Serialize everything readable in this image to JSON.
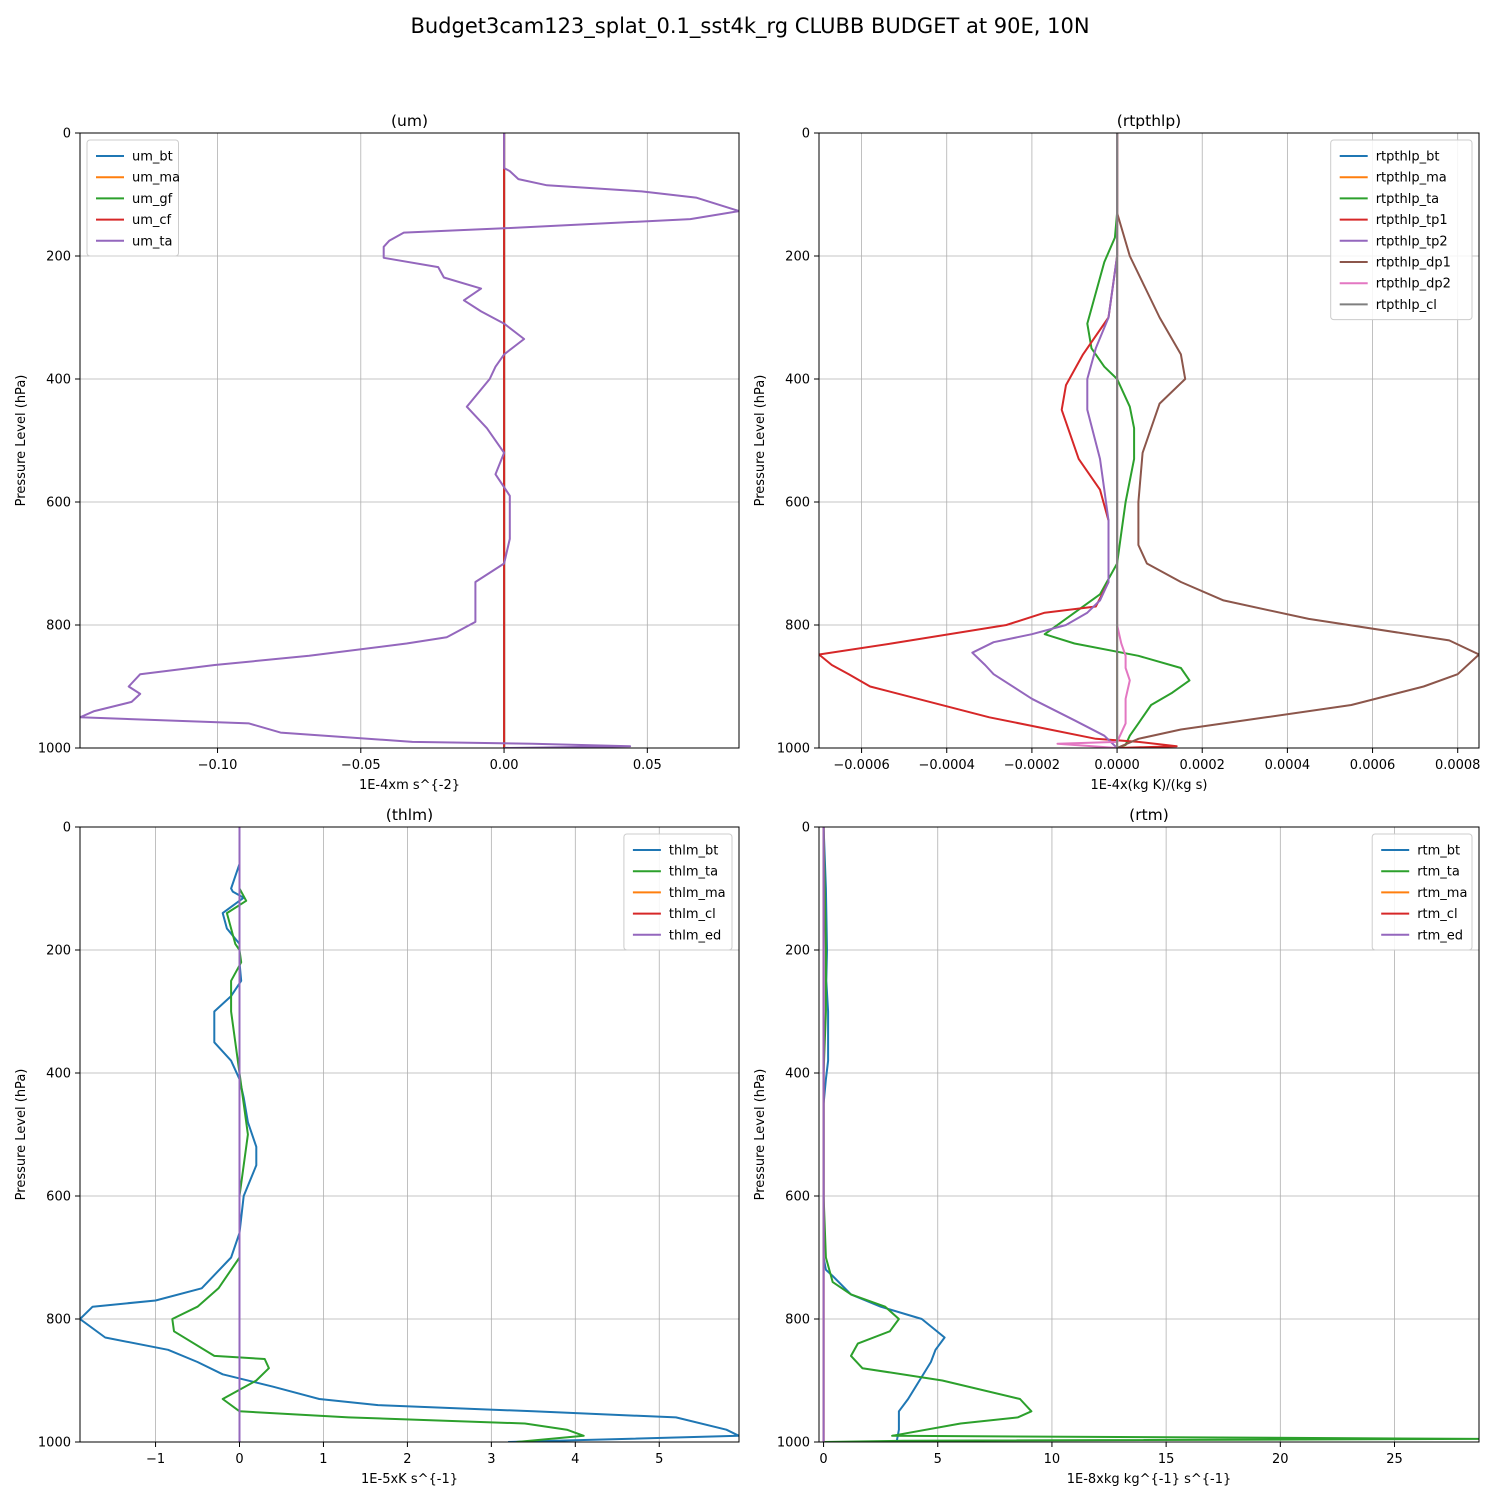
{
  "figure": {
    "suptitle": "Budget3cam123_splat_0.1_sst4k_rg CLUBB BUDGET at 90E, 10N"
  },
  "colors": {
    "c0": "#1f77b4",
    "c1": "#ff7f0e",
    "c2": "#2ca02c",
    "c3": "#d62728",
    "c4": "#9467bd",
    "c5": "#8c564b",
    "c6": "#e377c2",
    "c7": "#7f7f7f"
  },
  "chart_data": [
    {
      "type": "line",
      "title": "(um)",
      "xlabel": "1E-4xm s^{-2}",
      "ylabel": "Pressure Level (hPa)",
      "xlim": [
        -0.148,
        0.082
      ],
      "ylim": [
        1000,
        0
      ],
      "xticks": [
        -0.1,
        -0.05,
        0.0,
        0.05
      ],
      "xtick_labels": [
        "−0.10",
        "−0.05",
        "0.00",
        "0.05"
      ],
      "yticks": [
        0,
        200,
        400,
        600,
        800,
        1000
      ],
      "grid": true,
      "legend": "upper left",
      "series": [
        {
          "name": "um_bt",
          "color": "#1f77b4",
          "x": [
            0,
            0
          ],
          "y": [
            0,
            1000
          ]
        },
        {
          "name": "um_ma",
          "color": "#ff7f0e",
          "x": [
            0,
            0
          ],
          "y": [
            0,
            1000
          ]
        },
        {
          "name": "um_gf",
          "color": "#2ca02c",
          "x": [
            0,
            0
          ],
          "y": [
            0,
            1000
          ]
        },
        {
          "name": "um_cf",
          "color": "#d62728",
          "x": [
            0,
            0
          ],
          "y": [
            0,
            1000
          ]
        },
        {
          "name": "um_ta",
          "color": "#9467bd",
          "x": [
            0,
            0,
            0.002,
            0.005,
            0.015,
            0.048,
            0.067,
            0.082,
            0.065,
            0,
            -0.035,
            -0.04,
            -0.042,
            -0.042,
            -0.023,
            -0.021,
            -0.008,
            -0.014,
            -0.008,
            0,
            0.007,
            0,
            -0.003,
            -0.005,
            -0.013,
            -0.006,
            0,
            -0.003,
            0.002,
            0.002,
            0.002,
            0,
            -0.01,
            -0.01,
            -0.01,
            -0.01,
            -0.02,
            -0.034,
            -0.068,
            -0.101,
            -0.127,
            -0.131,
            -0.127,
            -0.13,
            -0.143,
            -0.148,
            -0.089,
            -0.078,
            -0.032,
            0.01,
            0.044,
            0
          ],
          "y": [
            0,
            57,
            62,
            75,
            85,
            95,
            105,
            127,
            140,
            155,
            162,
            175,
            185,
            203,
            218,
            235,
            253,
            272,
            290,
            310,
            335,
            360,
            380,
            400,
            445,
            480,
            520,
            555,
            590,
            620,
            660,
            700,
            730,
            760,
            780,
            795,
            820,
            830,
            850,
            865,
            880,
            900,
            912,
            925,
            940,
            950,
            960,
            975,
            990,
            993,
            997,
            1000
          ]
        }
      ]
    },
    {
      "type": "line",
      "title": "(rtpthlp)",
      "xlabel": "1E-4x(kg K)/(kg s)",
      "ylabel": "Pressure Level (hPa)",
      "xlim": [
        -0.0007,
        0.00085
      ],
      "ylim": [
        1000,
        0
      ],
      "xticks": [
        -0.0006,
        -0.0004,
        -0.0002,
        0.0,
        0.0002,
        0.0004,
        0.0006,
        0.0008
      ],
      "xtick_labels": [
        "−0.0006",
        "−0.0004",
        "−0.0002",
        "0.0000",
        "0.0002",
        "0.0004",
        "0.0006",
        "0.0008"
      ],
      "yticks": [
        0,
        200,
        400,
        600,
        800,
        1000
      ],
      "grid": true,
      "legend": "upper right",
      "series": [
        {
          "name": "rtpthlp_bt",
          "color": "#1f77b4",
          "x": [
            0,
            0
          ],
          "y": [
            0,
            1000
          ]
        },
        {
          "name": "rtpthlp_ma",
          "color": "#ff7f0e",
          "x": [
            0,
            0
          ],
          "y": [
            0,
            1000
          ]
        },
        {
          "name": "rtpthlp_ta",
          "color": "#2ca02c",
          "x": [
            0,
            0,
            -5e-06,
            -3e-05,
            -5e-05,
            -7e-05,
            -6e-05,
            -3e-05,
            0,
            3e-05,
            4e-05,
            4e-05,
            2e-05,
            1e-05,
            0,
            -4e-05,
            -0.0001,
            -0.00017,
            -0.0001,
            5e-05,
            0.00015,
            0.00017,
            0.00013,
            8e-05,
            5e-05,
            3e-05,
            2e-05,
            0
          ],
          "y": [
            0,
            130,
            170,
            210,
            260,
            310,
            350,
            380,
            400,
            445,
            480,
            530,
            600,
            650,
            700,
            750,
            780,
            815,
            830,
            850,
            870,
            890,
            910,
            930,
            960,
            980,
            995,
            1000
          ]
        },
        {
          "name": "rtpthlp_tp1",
          "color": "#d62728",
          "x": [
            0,
            0,
            -2e-05,
            -8e-05,
            -0.00012,
            -0.00013,
            -9e-05,
            -4e-05,
            -2e-05,
            -2e-05,
            -5e-05,
            -0.00017,
            -0.00026,
            -0.00053,
            -0.0007,
            -0.00067,
            -0.00063,
            -0.00058,
            -0.0003,
            -5e-05,
            5e-05,
            0.00014,
            0
          ],
          "y": [
            0,
            200,
            300,
            360,
            410,
            450,
            530,
            580,
            630,
            730,
            770,
            780,
            800,
            830,
            848,
            865,
            880,
            900,
            950,
            985,
            990,
            997,
            1000
          ]
        },
        {
          "name": "rtpthlp_tp2",
          "color": "#9467bd",
          "x": [
            0,
            0,
            -2e-05,
            -5e-05,
            -7e-05,
            -7e-05,
            -4e-05,
            -3e-05,
            -2e-05,
            -2e-05,
            -4e-05,
            -7e-05,
            -0.00012,
            -0.0002,
            -0.00029,
            -0.00034,
            -0.00031,
            -0.00029,
            -0.0002,
            -0.0001,
            -3e-05,
            0
          ],
          "y": [
            0,
            200,
            300,
            350,
            400,
            450,
            530,
            580,
            630,
            730,
            760,
            780,
            800,
            815,
            828,
            845,
            865,
            880,
            920,
            955,
            980,
            1000
          ]
        },
        {
          "name": "rtpthlp_dp1",
          "color": "#8c564b",
          "x": [
            0,
            0,
            3e-05,
            0.0001,
            0.00015,
            0.00016,
            0.0001,
            6e-05,
            5e-05,
            5e-05,
            7e-05,
            0.00015,
            0.00025,
            0.00045,
            0.00078,
            0.00085,
            0.0008,
            0.00072,
            0.00055,
            0.00035,
            0.00015,
            5e-05,
            0
          ],
          "y": [
            0,
            130,
            200,
            300,
            360,
            400,
            440,
            520,
            600,
            670,
            700,
            730,
            760,
            790,
            825,
            848,
            880,
            900,
            930,
            950,
            970,
            985,
            1000
          ]
        },
        {
          "name": "rtpthlp_dp2",
          "color": "#e377c2",
          "x": [
            0,
            0,
            1e-05,
            2e-05,
            2e-05,
            3e-05,
            2e-05,
            2e-05,
            0,
            -0.00014,
            0
          ],
          "y": [
            0,
            800,
            830,
            850,
            870,
            890,
            920,
            960,
            990,
            993,
            1000
          ]
        },
        {
          "name": "rtpthlp_cl",
          "color": "#7f7f7f",
          "x": [
            0,
            0
          ],
          "y": [
            0,
            1000
          ]
        }
      ]
    },
    {
      "type": "line",
      "title": "(thlm)",
      "xlabel": "1E-5xK s^{-1}",
      "ylabel": "Pressure Level (hPa)",
      "xlim": [
        -1.9,
        5.95
      ],
      "ylim": [
        1000,
        0
      ],
      "xticks": [
        -1,
        0,
        1,
        2,
        3,
        4,
        5
      ],
      "xtick_labels": [
        "−1",
        "0",
        "1",
        "2",
        "3",
        "4",
        "5"
      ],
      "yticks": [
        0,
        200,
        400,
        600,
        800,
        1000
      ],
      "grid": true,
      "legend": "upper right",
      "series": [
        {
          "name": "thlm_bt",
          "color": "#1f77b4",
          "x": [
            0,
            0,
            -0.05,
            -0.1,
            -0.08,
            0.05,
            -0.2,
            -0.15,
            0,
            0,
            0.02,
            -0.1,
            -0.3,
            -0.3,
            -0.1,
            0,
            0.05,
            0.1,
            0.2,
            0.2,
            0.05,
            0,
            -0.1,
            -0.45,
            -1,
            -1.75,
            -1.9,
            -1.6,
            -0.85,
            -0.5,
            -0.2,
            0.4,
            0.95,
            1.65,
            3.5,
            5.2,
            5.8,
            5.95,
            3.2
          ],
          "y": [
            0,
            60,
            80,
            100,
            105,
            115,
            140,
            165,
            190,
            220,
            250,
            275,
            300,
            350,
            380,
            410,
            440,
            480,
            520,
            550,
            600,
            660,
            700,
            750,
            770,
            780,
            800,
            830,
            850,
            870,
            890,
            910,
            930,
            940,
            950,
            960,
            980,
            990,
            1000
          ]
        },
        {
          "name": "thlm_ta",
          "color": "#2ca02c",
          "x": [
            0,
            0,
            0.08,
            -0.15,
            -0.05,
            0,
            0.02,
            -0.1,
            -0.1,
            -0.05,
            0,
            0.05,
            0.1,
            0.05,
            0,
            0,
            -0.25,
            -0.5,
            -0.8,
            -0.78,
            -0.3,
            0.3,
            0.35,
            0.2,
            -0.2,
            0,
            1.3,
            3.4,
            3.9,
            4.1,
            3.3
          ],
          "y": [
            0,
            100,
            120,
            140,
            190,
            200,
            220,
            250,
            300,
            350,
            400,
            450,
            500,
            550,
            600,
            700,
            750,
            780,
            800,
            820,
            860,
            865,
            880,
            900,
            930,
            950,
            960,
            970,
            980,
            990,
            1000
          ]
        },
        {
          "name": "thlm_ma",
          "color": "#ff7f0e",
          "x": [
            0,
            0
          ],
          "y": [
            0,
            1000
          ]
        },
        {
          "name": "thlm_cl",
          "color": "#d62728",
          "x": [
            0,
            0
          ],
          "y": [
            0,
            1000
          ]
        },
        {
          "name": "thlm_ed",
          "color": "#9467bd",
          "x": [
            0,
            0
          ],
          "y": [
            0,
            1000
          ]
        }
      ]
    },
    {
      "type": "line",
      "title": "(rtm)",
      "xlabel": "1E-8xkg kg^{-1} s^{-1}",
      "ylabel": "Pressure Level (hPa)",
      "xlim": [
        -0.2,
        28.7
      ],
      "ylim": [
        1000,
        0
      ],
      "xticks": [
        0,
        5,
        10,
        15,
        20,
        25
      ],
      "xtick_labels": [
        "0",
        "5",
        "10",
        "15",
        "20",
        "25"
      ],
      "yticks": [
        0,
        200,
        400,
        600,
        800,
        1000
      ],
      "grid": true,
      "legend": "upper right",
      "series": [
        {
          "name": "rtm_bt",
          "color": "#1f77b4",
          "x": [
            0,
            0.1,
            0.15,
            0.12,
            0.2,
            0.2,
            0.1,
            0,
            0,
            0.1,
            0.4,
            1.2,
            2.5,
            4.3,
            5.3,
            4.9,
            4.7,
            4.2,
            3.7,
            3.3,
            3.3,
            3.2
          ],
          "y": [
            0,
            100,
            200,
            250,
            300,
            380,
            410,
            450,
            700,
            720,
            730,
            760,
            780,
            800,
            830,
            850,
            870,
            900,
            930,
            950,
            980,
            1000
          ]
        },
        {
          "name": "rtm_ta",
          "color": "#2ca02c",
          "x": [
            0,
            0.05,
            0.1,
            0.1,
            0,
            0,
            0.1,
            0.4,
            1.2,
            2.7,
            3.3,
            2.9,
            1.5,
            1.2,
            1.7,
            5.2,
            8.6,
            9.1,
            8.5,
            6,
            3,
            28.7,
            3.5,
            0
          ],
          "y": [
            0,
            100,
            200,
            300,
            400,
            600,
            700,
            740,
            760,
            780,
            800,
            820,
            840,
            860,
            880,
            900,
            930,
            950,
            960,
            970,
            990,
            995,
            998,
            1000
          ]
        },
        {
          "name": "rtm_ma",
          "color": "#ff7f0e",
          "x": [
            0,
            0
          ],
          "y": [
            0,
            1000
          ]
        },
        {
          "name": "rtm_cl",
          "color": "#d62728",
          "x": [
            0,
            0
          ],
          "y": [
            0,
            1000
          ]
        },
        {
          "name": "rtm_ed",
          "color": "#9467bd",
          "x": [
            0,
            0
          ],
          "y": [
            0,
            1000
          ]
        }
      ]
    }
  ]
}
